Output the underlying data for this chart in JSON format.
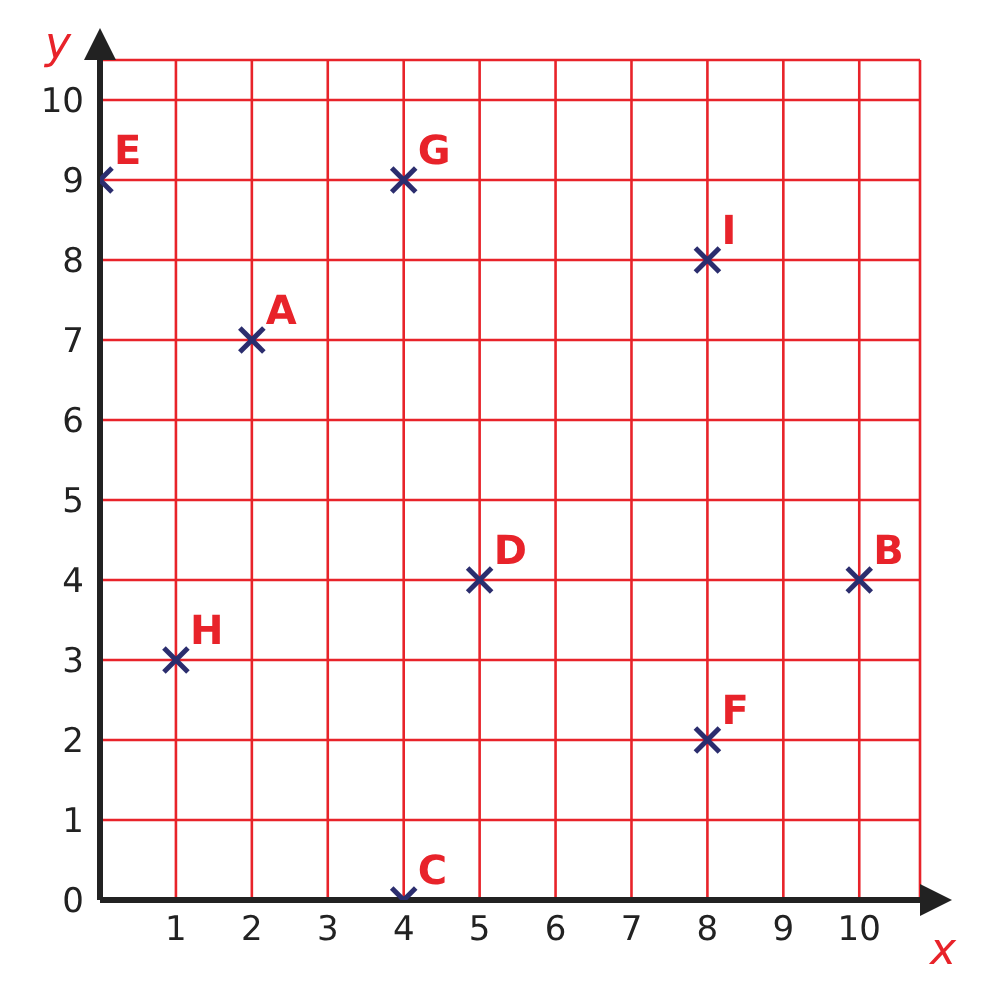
{
  "chart_data": {
    "type": "scatter",
    "xlabel": "x",
    "ylabel": "y",
    "x": [
      0,
      4,
      8,
      2,
      5,
      10,
      1,
      8,
      4
    ],
    "series": [
      {
        "color": "#2b2d6e",
        "values": [
          9,
          9,
          8,
          7,
          4,
          4,
          3,
          2,
          0
        ]
      }
    ],
    "marker": "cross",
    "grid": true,
    "xlim": [
      0,
      10.8
    ],
    "ylim": [
      0,
      10.5
    ],
    "xticks": [
      {
        "value": 0,
        "label": null
      },
      1,
      2,
      3,
      4,
      5,
      6,
      7,
      8,
      9,
      10
    ],
    "yticks": [
      0,
      1,
      2,
      3,
      4,
      5,
      6,
      7,
      8,
      9,
      10
    ],
    "annotations": [
      {
        "text": "E",
        "x": 0,
        "y": 9
      },
      {
        "text": "G",
        "x": 4,
        "y": 9
      },
      {
        "text": "I",
        "x": 8,
        "y": 8
      },
      {
        "text": "A",
        "x": 2,
        "y": 7
      },
      {
        "text": "D",
        "x": 5,
        "y": 4
      },
      {
        "text": "B",
        "x": 10,
        "y": 4
      },
      {
        "text": "H",
        "x": 1,
        "y": 3
      },
      {
        "text": "F",
        "x": 8,
        "y": 2
      },
      {
        "text": "C",
        "x": 4,
        "y": 0
      }
    ]
  }
}
